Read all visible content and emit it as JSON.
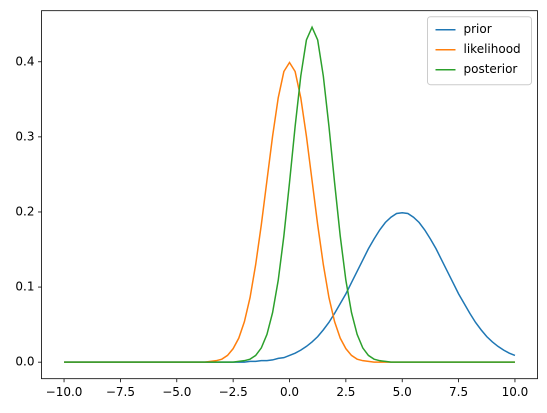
{
  "chart_data": {
    "type": "line",
    "x": [
      -10,
      -9.75,
      -9.5,
      -9.25,
      -9,
      -8.75,
      -8.5,
      -8.25,
      -8,
      -7.75,
      -7.5,
      -7.25,
      -7,
      -6.75,
      -6.5,
      -6.25,
      -6,
      -5.75,
      -5.5,
      -5.25,
      -5,
      -4.75,
      -4.5,
      -4.25,
      -4,
      -3.75,
      -3.5,
      -3.25,
      -3,
      -2.75,
      -2.5,
      -2.25,
      -2,
      -1.75,
      -1.5,
      -1.25,
      -1,
      -0.75,
      -0.5,
      -0.25,
      0,
      0.25,
      0.5,
      0.75,
      1,
      1.25,
      1.5,
      1.75,
      2,
      2.25,
      2.5,
      2.75,
      3,
      3.25,
      3.5,
      3.75,
      4,
      4.25,
      4.5,
      4.75,
      5,
      5.25,
      5.5,
      5.75,
      6,
      6.25,
      6.5,
      6.75,
      7,
      7.25,
      7.5,
      7.75,
      8,
      8.25,
      8.5,
      8.75,
      9,
      9.25,
      9.5,
      9.75,
      10
    ],
    "series": [
      {
        "name": "prior",
        "color": "#1f77b4",
        "values": [
          0,
          0,
          0,
          0,
          0,
          0,
          0,
          0,
          0,
          0,
          0,
          0,
          0,
          0,
          0,
          0,
          0,
          0,
          0,
          0,
          0,
          0,
          0,
          0,
          0,
          0,
          0,
          0,
          0,
          0,
          0,
          0,
          0,
          0.001,
          0.001,
          0.002,
          0.002,
          0.003,
          0.005,
          0.006,
          0.009,
          0.012,
          0.016,
          0.021,
          0.027,
          0.034,
          0.043,
          0.053,
          0.065,
          0.078,
          0.091,
          0.106,
          0.121,
          0.136,
          0.151,
          0.164,
          0.176,
          0.186,
          0.193,
          0.198,
          0.199,
          0.198,
          0.193,
          0.186,
          0.176,
          0.164,
          0.151,
          0.136,
          0.121,
          0.106,
          0.091,
          0.078,
          0.065,
          0.053,
          0.043,
          0.034,
          0.027,
          0.021,
          0.016,
          0.012,
          0.009
        ]
      },
      {
        "name": "likelihood",
        "color": "#ff7f0e",
        "values": [
          0,
          0,
          0,
          0,
          0,
          0,
          0,
          0,
          0,
          0,
          0,
          0,
          0,
          0,
          0,
          0,
          0,
          0,
          0,
          0,
          0,
          0,
          0,
          0,
          0,
          0,
          0.001,
          0.002,
          0.004,
          0.009,
          0.018,
          0.032,
          0.054,
          0.086,
          0.13,
          0.183,
          0.242,
          0.301,
          0.352,
          0.387,
          0.399,
          0.387,
          0.352,
          0.301,
          0.242,
          0.183,
          0.13,
          0.086,
          0.054,
          0.032,
          0.018,
          0.009,
          0.004,
          0.002,
          0.001,
          0,
          0,
          0,
          0,
          0,
          0,
          0,
          0,
          0,
          0,
          0,
          0,
          0,
          0,
          0,
          0,
          0,
          0,
          0,
          0,
          0,
          0,
          0,
          0,
          0,
          0
        ]
      },
      {
        "name": "posterior",
        "color": "#2ca02c",
        "values": [
          0,
          0,
          0,
          0,
          0,
          0,
          0,
          0,
          0,
          0,
          0,
          0,
          0,
          0,
          0,
          0,
          0,
          0,
          0,
          0,
          0,
          0,
          0,
          0,
          0,
          0,
          0,
          0,
          0,
          0,
          0,
          0.001,
          0.002,
          0.004,
          0.009,
          0.019,
          0.037,
          0.066,
          0.109,
          0.168,
          0.239,
          0.314,
          0.381,
          0.429,
          0.446,
          0.429,
          0.381,
          0.314,
          0.239,
          0.168,
          0.109,
          0.066,
          0.037,
          0.019,
          0.009,
          0.004,
          0.002,
          0.001,
          0,
          0,
          0,
          0,
          0,
          0,
          0,
          0,
          0,
          0,
          0,
          0,
          0,
          0,
          0,
          0,
          0,
          0,
          0,
          0,
          0,
          0,
          0
        ]
      }
    ],
    "xlim": [
      -11,
      11
    ],
    "xticks": [
      {
        "value": -10,
        "label": "−10.0"
      },
      {
        "value": -7.5,
        "label": "−7.5"
      },
      {
        "value": -5,
        "label": "−5.0"
      },
      {
        "value": -2.5,
        "label": "−2.5"
      },
      {
        "value": 0,
        "label": "0.0"
      },
      {
        "value": 2.5,
        "label": "2.5"
      },
      {
        "value": 5,
        "label": "5.0"
      },
      {
        "value": 7.5,
        "label": "7.5"
      },
      {
        "value": 10,
        "label": "10.0"
      }
    ],
    "ylim": [
      -0.022,
      0.468
    ],
    "yticks": [
      {
        "value": 0,
        "label": "0.0"
      },
      {
        "value": 0.1,
        "label": "0.1"
      },
      {
        "value": 0.2,
        "label": "0.2"
      },
      {
        "value": 0.3,
        "label": "0.3"
      },
      {
        "value": 0.4,
        "label": "0.4"
      }
    ],
    "legend": "upper right"
  }
}
